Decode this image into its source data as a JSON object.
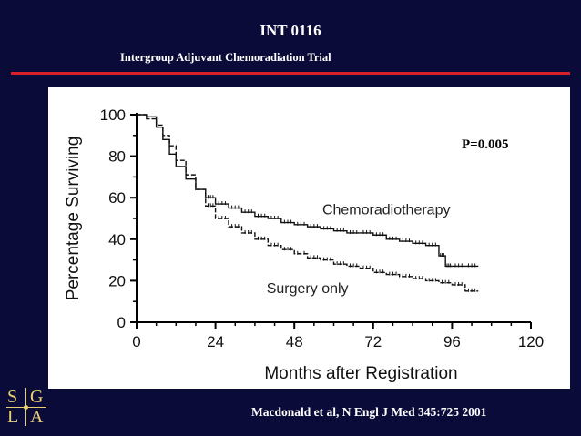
{
  "slide": {
    "title": "INT 0116",
    "subtitle": "Intergroup Adjuvant Chemoradiation Trial",
    "citation": "Macdonald et al, N Engl J Med 345:725 2001",
    "accent_color": "#d9202a",
    "background_color": "#0b0b3a"
  },
  "logo": {
    "letters": [
      "S",
      "G",
      "L",
      "A"
    ]
  },
  "chart_data": {
    "type": "line",
    "title": "",
    "xlabel": "Months after Registration",
    "ylabel": "Percentage Surviving",
    "xlim": [
      0,
      120
    ],
    "ylim": [
      0,
      100
    ],
    "x_ticks": [
      "0",
      "24",
      "48",
      "72",
      "96",
      "120"
    ],
    "y_ticks": [
      "0",
      "20",
      "40",
      "60",
      "80",
      "100"
    ],
    "grid": false,
    "annotation": "P=0.005",
    "series": [
      {
        "name": "Chemoradiotherapy",
        "style": "solid",
        "x": [
          0,
          3,
          6,
          8,
          10,
          12,
          15,
          18,
          21,
          24,
          28,
          32,
          36,
          40,
          44,
          48,
          52,
          56,
          60,
          64,
          68,
          72,
          76,
          80,
          84,
          88,
          92,
          94,
          96,
          100,
          104
        ],
        "y": [
          100,
          99,
          94,
          88,
          81,
          75,
          69,
          64,
          60,
          57,
          55,
          53,
          51,
          50,
          48,
          47,
          46,
          45,
          44,
          43,
          43,
          42,
          40,
          39,
          38,
          37,
          32,
          27,
          27,
          27,
          27
        ]
      },
      {
        "name": "Surgery only",
        "style": "dashed",
        "x": [
          0,
          3,
          6,
          8,
          10,
          12,
          15,
          18,
          21,
          24,
          28,
          32,
          36,
          40,
          44,
          48,
          52,
          56,
          60,
          64,
          68,
          72,
          76,
          80,
          84,
          88,
          92,
          96,
          100,
          104
        ],
        "y": [
          100,
          98,
          95,
          90,
          85,
          78,
          71,
          64,
          56,
          50,
          46,
          43,
          40,
          37,
          35,
          33,
          31,
          30,
          28,
          27,
          26,
          24,
          23,
          22,
          21,
          20,
          19,
          18,
          15,
          15
        ]
      }
    ]
  }
}
